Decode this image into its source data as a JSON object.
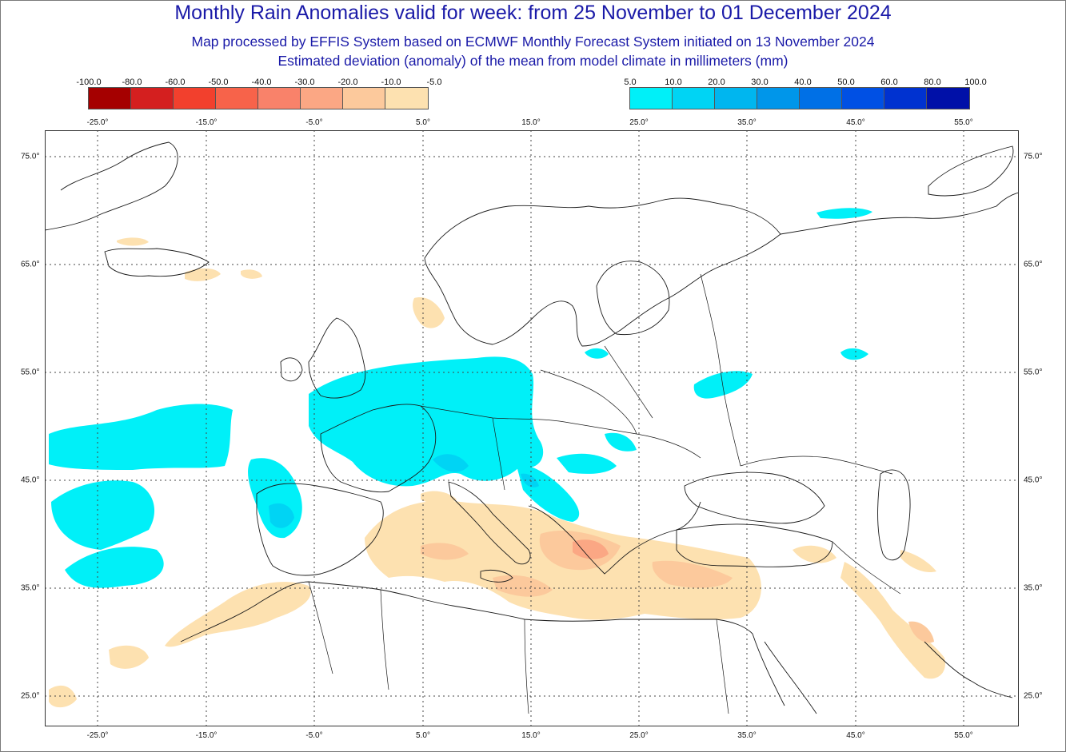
{
  "title": "Monthly Rain Anomalies valid for week: from 25 November to 01 December 2024",
  "subtitle_1": "Map processed by EFFIS System based on ECMWF Monthly Forecast System initiated on 13 November 2024",
  "subtitle_2": "Estimated deviation (anomaly) of the mean from model climate in millimeters (mm)",
  "legend_negative": {
    "ticks": [
      "-100.0",
      "-80.0",
      "-60.0",
      "-50.0",
      "-40.0",
      "-30.0",
      "-20.0",
      "-10.0",
      "-5.0"
    ],
    "colors": [
      "#a50000",
      "#d41f1f",
      "#f2402d",
      "#f7634a",
      "#f9826a",
      "#fba784",
      "#fcc99c",
      "#fde1b0"
    ]
  },
  "legend_positive": {
    "ticks": [
      "5.0",
      "10.0",
      "20.0",
      "30.0",
      "40.0",
      "50.0",
      "60.0",
      "80.0",
      "100.0"
    ],
    "colors": [
      "#00f0f8",
      "#00d4f4",
      "#00b6ef",
      "#0096ea",
      "#0070e6",
      "#0050e4",
      "#0032d0",
      "#0010a8"
    ]
  },
  "longitude_labels": [
    "-25.0°",
    "-15.0°",
    "-5.0°",
    "5.0°",
    "15.0°",
    "25.0°",
    "35.0°",
    "45.0°",
    "55.0°"
  ],
  "latitude_labels": [
    "75.0°",
    "65.0°",
    "55.0°",
    "45.0°",
    "35.0°",
    "25.0°"
  ],
  "map": {
    "colors": {
      "coast": "#1a1a1a",
      "grid": "#444444",
      "wet_light": "#00f0f8",
      "wet_mid": "#00d4f4",
      "dry_light": "#fde1b0",
      "dry_mid": "#fcc99c",
      "dry_strong": "#fba784"
    }
  }
}
